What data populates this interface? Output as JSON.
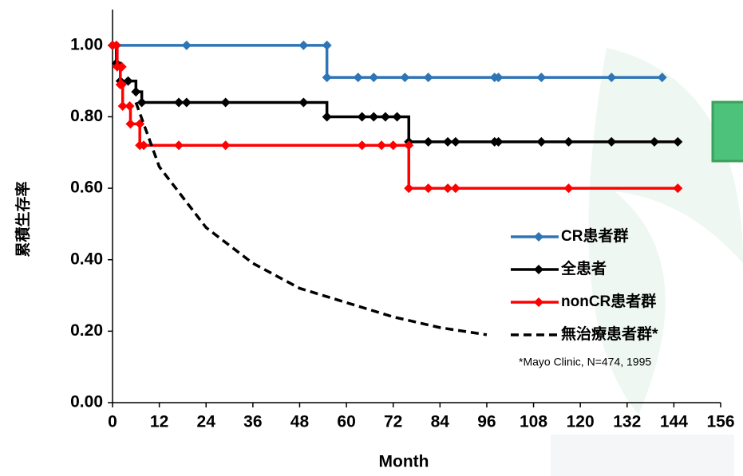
{
  "chart_data": {
    "type": "line",
    "step": true,
    "x_label": "Month",
    "y_label": "累積生存率",
    "annotation": "*Mayo Clinic, N=474, 1995",
    "xlim": [
      0,
      156
    ],
    "xticks": [
      0,
      12,
      24,
      36,
      48,
      60,
      72,
      84,
      96,
      108,
      120,
      132,
      144,
      156
    ],
    "ylim": [
      0,
      1.1
    ],
    "yticks": [
      {
        "value": 0,
        "label": "0.00"
      },
      {
        "value": 0.2,
        "label": "0.20"
      },
      {
        "value": 0.4,
        "label": "0.40"
      },
      {
        "value": 0.6,
        "label": "0.60"
      },
      {
        "value": 0.8,
        "label": "0.80"
      },
      {
        "value": 1,
        "label": "1.00"
      }
    ],
    "series": [
      {
        "name": "CR患者群",
        "color": "#2e75b6",
        "marker": "diamond",
        "step": true,
        "x": [
          0,
          19,
          49,
          55,
          55,
          63,
          67,
          75,
          81,
          98,
          99,
          110,
          128,
          141
        ],
        "values": [
          1,
          1,
          1,
          1,
          0.91,
          0.91,
          0.91,
          0.91,
          0.91,
          0.91,
          0.91,
          0.91,
          0.91,
          0.91
        ]
      },
      {
        "name": "全患者",
        "color": "#000000",
        "marker": "diamond",
        "step": true,
        "x": [
          0,
          1,
          2,
          4,
          6,
          7.5,
          17,
          19,
          29,
          49,
          55,
          64,
          67,
          70,
          73,
          76,
          81,
          86,
          88,
          98,
          99,
          110,
          117,
          128,
          139,
          145
        ],
        "values": [
          1,
          0.95,
          0.9,
          0.9,
          0.87,
          0.84,
          0.84,
          0.84,
          0.84,
          0.84,
          0.8,
          0.8,
          0.8,
          0.8,
          0.8,
          0.73,
          0.73,
          0.73,
          0.73,
          0.73,
          0.73,
          0.73,
          0.73,
          0.73,
          0.73,
          0.73
        ]
      },
      {
        "name": "nonCR患者群",
        "color": "#ff0000",
        "marker": "diamond",
        "step": true,
        "x": [
          0,
          1,
          1.2,
          2.4,
          2,
          2.4,
          2.6,
          4.4,
          4.6,
          7,
          7,
          8,
          17,
          29,
          64,
          69,
          72,
          76,
          76,
          81,
          86,
          88,
          117,
          145
        ],
        "values": [
          1,
          1,
          0.94,
          0.94,
          0.89,
          0.89,
          0.83,
          0.83,
          0.78,
          0.78,
          0.72,
          0.72,
          0.72,
          0.72,
          0.72,
          0.72,
          0.72,
          0.72,
          0.6,
          0.6,
          0.6,
          0.6,
          0.6,
          0.6
        ]
      },
      {
        "name": "無治療患者群*",
        "color": "#000000",
        "dashed": true,
        "step": false,
        "x": [
          6,
          12,
          24,
          36,
          48,
          60,
          72,
          84,
          96
        ],
        "values": [
          0.84,
          0.66,
          0.49,
          0.39,
          0.32,
          0.28,
          0.24,
          0.21,
          0.19
        ]
      }
    ]
  }
}
